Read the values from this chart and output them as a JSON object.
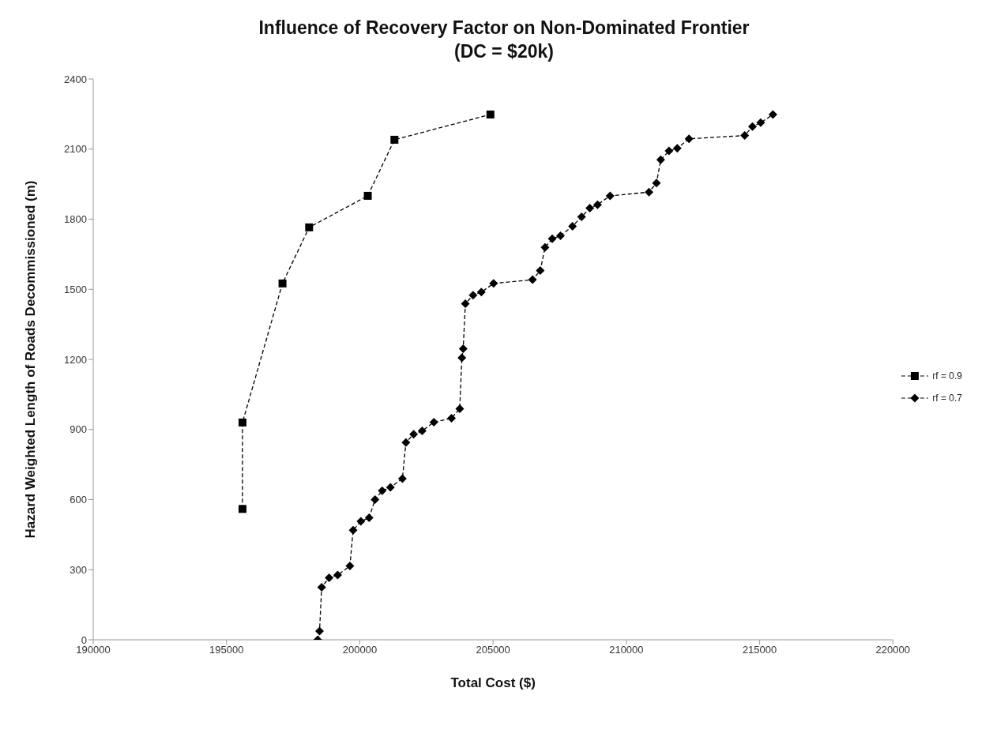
{
  "chart_data": {
    "type": "line",
    "title": "Influence of Recovery Factor on Non-Dominated Frontier",
    "subtitle": "(DC = $20k)",
    "xlabel": "Total Cost ($)",
    "ylabel": "Hazard Weighted Length of Roads Decommissioned (m)",
    "xlim": [
      190000,
      220000
    ],
    "xticks": [
      190000,
      195000,
      200000,
      205000,
      210000,
      215000,
      220000
    ],
    "ylim": [
      0,
      2400
    ],
    "yticks": [
      0,
      300,
      600,
      900,
      1200,
      1500,
      1800,
      2100,
      2400
    ],
    "grid": false,
    "legend": "right",
    "line_style": "dashed",
    "series": [
      {
        "name": "rf = 0.9",
        "color": "#000000",
        "marker": "square",
        "x": [
          195600,
          195600,
          197100,
          198100,
          200300,
          201300,
          204900
        ],
        "values": [
          560,
          930,
          1525,
          1765,
          1900,
          2140,
          2248
        ]
      },
      {
        "name": "rf = 0.7",
        "color": "#000000",
        "marker": "diamond",
        "x": [
          198420,
          198490,
          198570,
          198850,
          199170,
          199630,
          199750,
          200040,
          200350,
          200570,
          200840,
          201150,
          201600,
          201730,
          202020,
          202340,
          202780,
          203440,
          203750,
          203830,
          203880,
          203960,
          204250,
          204560,
          205020,
          206480,
          206770,
          206950,
          207220,
          207530,
          207980,
          208320,
          208630,
          208920,
          209390,
          210850,
          211130,
          211290,
          211600,
          211910,
          212350,
          214440,
          214730,
          215040,
          215500
        ],
        "values": [
          0,
          37,
          225,
          265,
          277,
          316,
          469,
          507,
          522,
          600,
          638,
          652,
          690,
          844,
          880,
          894,
          931,
          948,
          989,
          1207,
          1246,
          1438,
          1475,
          1488,
          1525,
          1541,
          1580,
          1679,
          1716,
          1729,
          1770,
          1810,
          1847,
          1862,
          1900,
          1916,
          1955,
          2054,
          2092,
          2103,
          2144,
          2158,
          2196,
          2213,
          2248
        ]
      }
    ]
  }
}
